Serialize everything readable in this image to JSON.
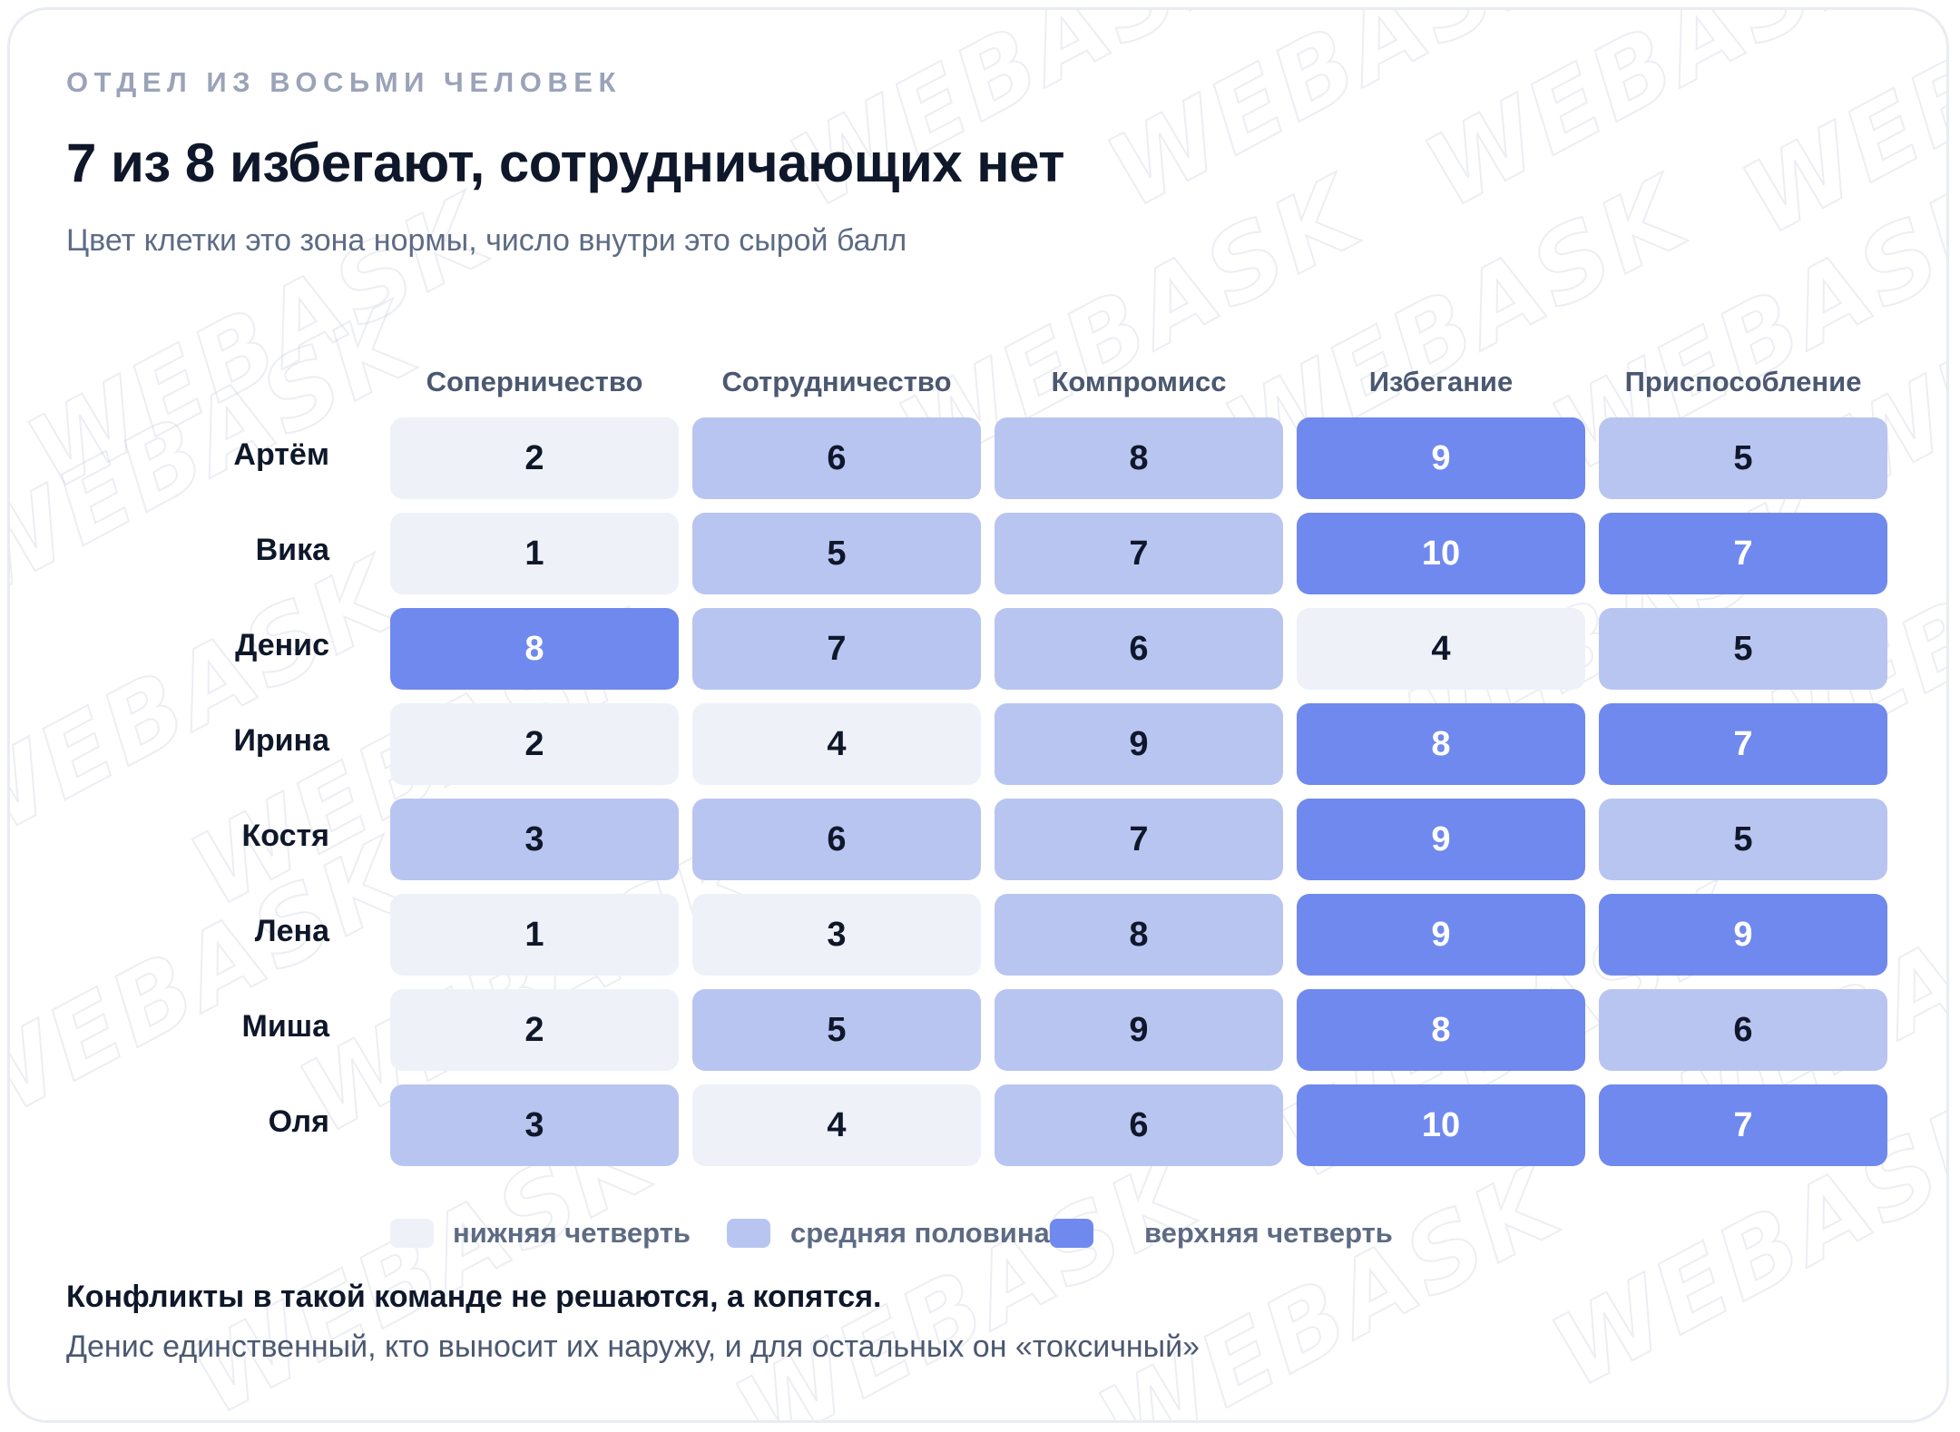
{
  "eyebrow": "ОТДЕЛ ИЗ ВОСЬМИ ЧЕЛОВЕК",
  "title": "7 из 8 избегают, сотрудничающих нет",
  "subtitle": "Цвет клетки это зона нормы, число внутри это сырой балл",
  "watermark_text": "WEBASK",
  "zone_colors": {
    "low": "#eef1f8",
    "mid": "#b9c5f1",
    "high": "#7089ee"
  },
  "text_colors": {
    "low": "#0f172a",
    "mid": "#0f172a",
    "high": "#ffffff"
  },
  "chart_data": {
    "type": "heatmap",
    "columns": [
      "Соперничество",
      "Сотрудничество",
      "Компромисс",
      "Избегание",
      "Приспособление"
    ],
    "rows": [
      "Артём",
      "Вика",
      "Денис",
      "Ирина",
      "Костя",
      "Лена",
      "Миша",
      "Оля"
    ],
    "values": [
      [
        2,
        6,
        8,
        9,
        5
      ],
      [
        1,
        5,
        7,
        10,
        7
      ],
      [
        8,
        7,
        6,
        4,
        5
      ],
      [
        2,
        4,
        9,
        8,
        7
      ],
      [
        3,
        6,
        7,
        9,
        5
      ],
      [
        1,
        3,
        8,
        9,
        9
      ],
      [
        2,
        5,
        9,
        8,
        6
      ],
      [
        3,
        4,
        6,
        10,
        7
      ]
    ],
    "zones": [
      [
        "low",
        "mid",
        "mid",
        "high",
        "mid"
      ],
      [
        "low",
        "mid",
        "mid",
        "high",
        "high"
      ],
      [
        "high",
        "mid",
        "mid",
        "low",
        "mid"
      ],
      [
        "low",
        "low",
        "mid",
        "high",
        "high"
      ],
      [
        "mid",
        "mid",
        "mid",
        "high",
        "mid"
      ],
      [
        "low",
        "low",
        "mid",
        "high",
        "high"
      ],
      [
        "low",
        "mid",
        "mid",
        "high",
        "mid"
      ],
      [
        "mid",
        "low",
        "mid",
        "high",
        "high"
      ]
    ]
  },
  "legend": [
    {
      "zone": "low",
      "label": "нижняя четверть"
    },
    {
      "zone": "mid",
      "label": "средняя половина"
    },
    {
      "zone": "high",
      "label": "верхняя четверть"
    }
  ],
  "conclusion": {
    "bold": "Конфликты в такой команде не решаются, а копятся.",
    "text": "Денис единственный, кто выносит их наружу, и для остальных он «токсичный»"
  }
}
